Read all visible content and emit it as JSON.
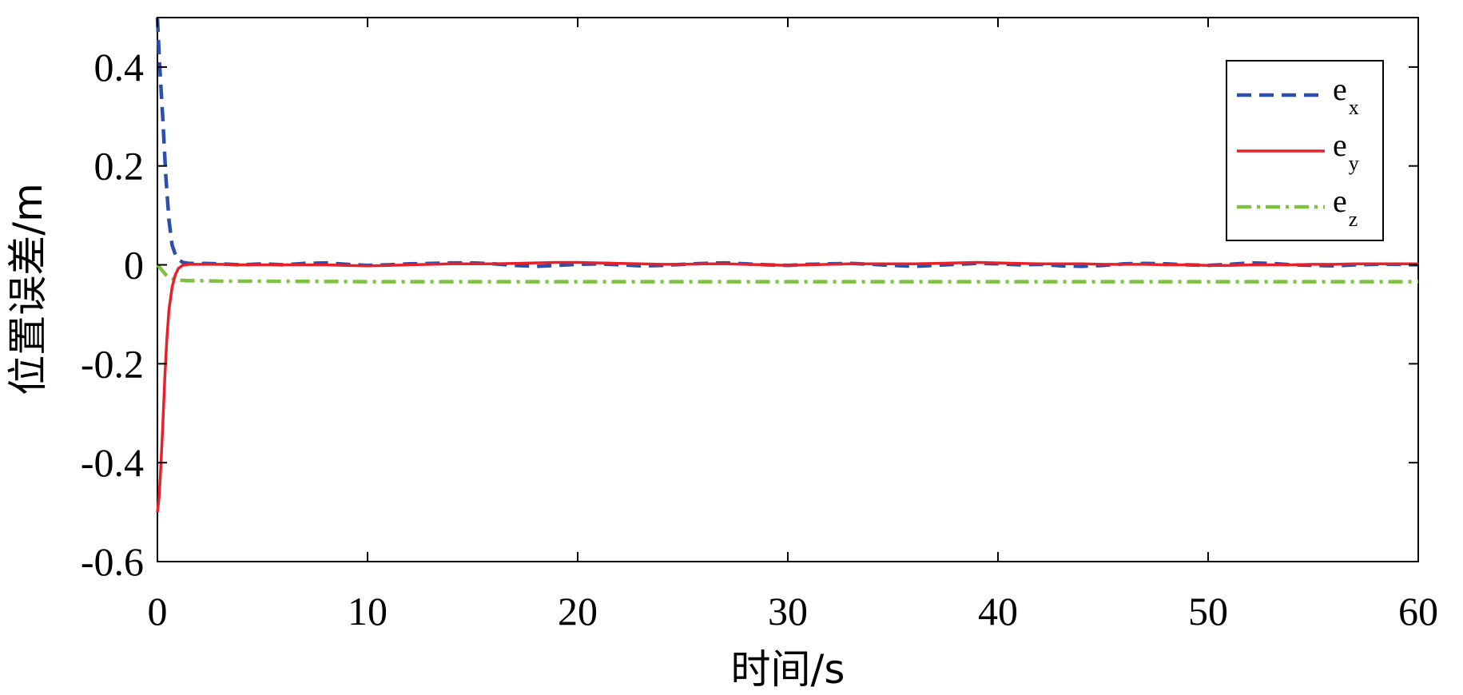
{
  "chart_data": {
    "type": "line",
    "title": "",
    "xlabel": "时间/s",
    "ylabel": "位置误差/m",
    "xlim": [
      0,
      60
    ],
    "ylim": [
      -0.6,
      0.5
    ],
    "xticks": [
      0,
      10,
      20,
      30,
      40,
      50,
      60
    ],
    "xtick_labels": [
      "0",
      "10",
      "20",
      "30",
      "40",
      "50",
      "60"
    ],
    "yticks": [
      -0.6,
      -0.4,
      -0.2,
      0,
      0.2,
      0.4
    ],
    "ytick_labels": [
      "-0.6",
      "-0.4",
      "-0.2",
      "0",
      "0.2",
      "0.4"
    ],
    "grid": false,
    "legend_position": "top-right",
    "series": [
      {
        "name": "e",
        "subscript": "x",
        "color": "#2b4faa",
        "dash": "dashed",
        "x": [
          0,
          0.1,
          0.25,
          0.4,
          0.55,
          0.7,
          0.9,
          1.2,
          1.5,
          2,
          3,
          4,
          5,
          6,
          7,
          8,
          9,
          10,
          11,
          12,
          13,
          14,
          15,
          16,
          17,
          18,
          19,
          20,
          21,
          22,
          23,
          24,
          25,
          26,
          27,
          28,
          29,
          30,
          31,
          32,
          33,
          34,
          35,
          36,
          37,
          38,
          39,
          40,
          41,
          42,
          43,
          44,
          45,
          46,
          47,
          48,
          49,
          50,
          51,
          52,
          53,
          54,
          55,
          56,
          57,
          58,
          59,
          60
        ],
        "y": [
          0.5,
          0.41,
          0.3,
          0.18,
          0.09,
          0.04,
          0.015,
          0.005,
          0.003,
          0.003,
          0.002,
          0.0,
          0.002,
          0.0,
          0.003,
          0.004,
          0.001,
          -0.001,
          0.0,
          0.002,
          0.003,
          0.004,
          0.004,
          0.002,
          -0.001,
          -0.003,
          -0.001,
          0.001,
          0.002,
          0.0,
          -0.002,
          -0.001,
          0.001,
          0.003,
          0.004,
          0.002,
          0.0,
          -0.001,
          0.001,
          0.002,
          0.003,
          0.001,
          -0.001,
          -0.003,
          -0.001,
          0.001,
          0.003,
          0.002,
          0.0,
          0.001,
          -0.002,
          -0.003,
          -0.001,
          0.002,
          0.003,
          0.002,
          0.0,
          -0.001,
          0.001,
          0.004,
          0.003,
          0.0,
          -0.001,
          -0.002,
          0.0,
          0.001,
          0.001,
          0.0
        ]
      },
      {
        "name": "e",
        "subscript": "y",
        "color": "#e8202a",
        "dash": "solid",
        "x": [
          0,
          0.08,
          0.15,
          0.25,
          0.35,
          0.45,
          0.55,
          0.7,
          0.85,
          1.0,
          1.2,
          1.5,
          2,
          3,
          4,
          5,
          6,
          7,
          8,
          9,
          10,
          11,
          12,
          13,
          14,
          15,
          16,
          17,
          18,
          19,
          20,
          21,
          22,
          23,
          24,
          25,
          26,
          27,
          28,
          29,
          30,
          31,
          32,
          33,
          34,
          35,
          36,
          37,
          38,
          39,
          40,
          41,
          42,
          43,
          44,
          45,
          46,
          47,
          48,
          49,
          50,
          51,
          52,
          53,
          54,
          55,
          56,
          57,
          58,
          59,
          60
        ],
        "y": [
          -0.5,
          -0.47,
          -0.42,
          -0.33,
          -0.23,
          -0.15,
          -0.09,
          -0.045,
          -0.02,
          -0.007,
          -0.001,
          0.001,
          0.001,
          0.001,
          0.0,
          0.0,
          0.0,
          0.0,
          0.0,
          -0.001,
          -0.002,
          -0.001,
          0.0,
          0.001,
          0.002,
          0.002,
          0.002,
          0.003,
          0.004,
          0.005,
          0.005,
          0.004,
          0.003,
          0.002,
          0.001,
          0.001,
          0.002,
          0.002,
          0.001,
          0.0,
          -0.001,
          0.0,
          0.001,
          0.002,
          0.002,
          0.002,
          0.002,
          0.003,
          0.004,
          0.005,
          0.004,
          0.003,
          0.002,
          0.002,
          0.002,
          0.001,
          0.001,
          0.001,
          0.0,
          0.0,
          -0.001,
          -0.001,
          0.0,
          0.0,
          0.0,
          0.001,
          0.001,
          0.002,
          0.002,
          0.002,
          0.002
        ]
      },
      {
        "name": "e",
        "subscript": "z",
        "color": "#7dc242",
        "dash": "dashdot",
        "x": [
          0,
          0.2,
          0.4,
          0.6,
          0.8,
          1.0,
          1.5,
          2,
          3,
          5,
          10,
          20,
          30,
          40,
          50,
          60
        ],
        "y": [
          0.0,
          -0.01,
          -0.02,
          -0.026,
          -0.029,
          -0.031,
          -0.032,
          -0.032,
          -0.033,
          -0.033,
          -0.034,
          -0.034,
          -0.034,
          -0.034,
          -0.034,
          -0.034
        ]
      }
    ]
  }
}
